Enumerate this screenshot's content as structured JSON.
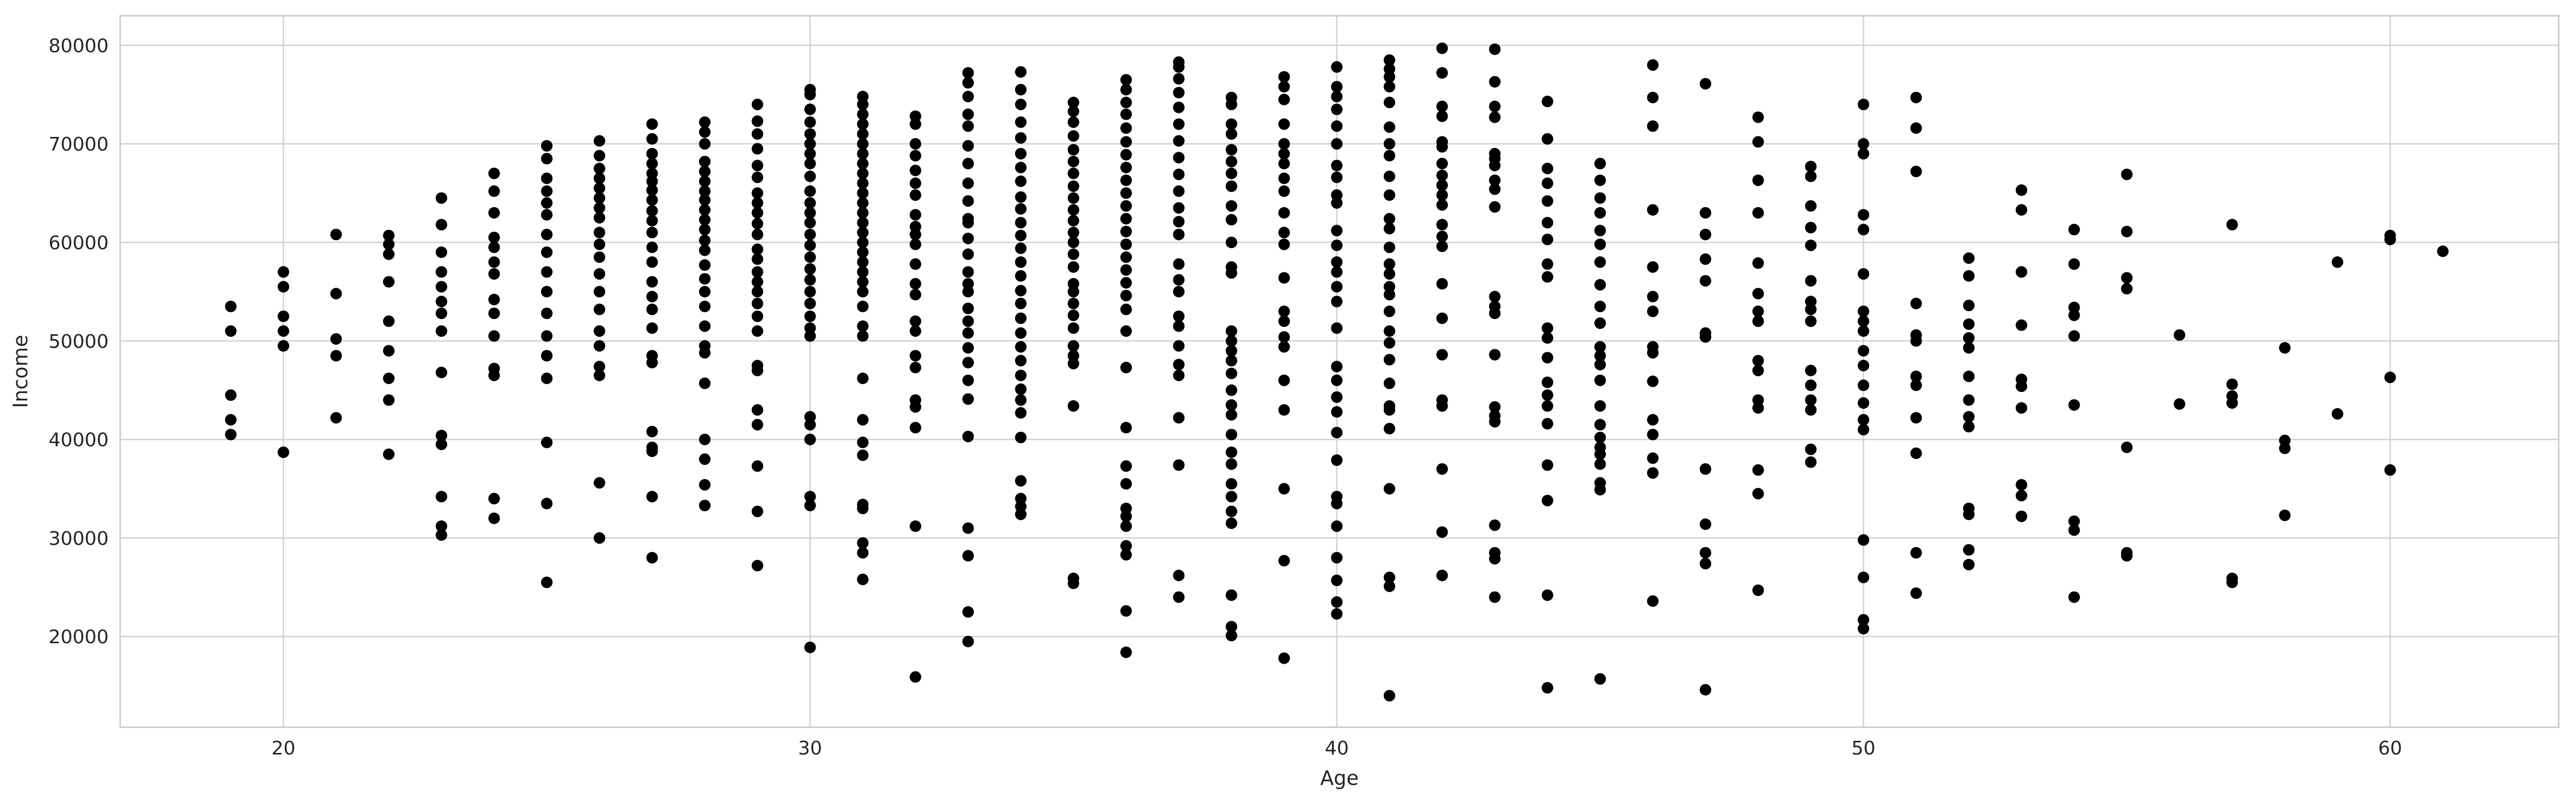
{
  "chart_data": {
    "type": "scatter",
    "title": "",
    "xlabel": "Age",
    "ylabel": "Income",
    "xlim": [
      16.9,
      63.2
    ],
    "ylim": [
      10800,
      83000
    ],
    "xticks": [
      20,
      30,
      40,
      50,
      60
    ],
    "yticks": [
      20000,
      30000,
      40000,
      50000,
      60000,
      70000,
      80000
    ],
    "xtick_labels": [
      "20",
      "30",
      "40",
      "50",
      "60"
    ],
    "ytick_labels": [
      "20000",
      "30000",
      "40000",
      "50000",
      "60000",
      "70000",
      "80000"
    ],
    "grid": true,
    "marker_color": "#000000",
    "grid_color": "#d0d0d0",
    "columns": [
      {
        "x": 19,
        "y": [
          53500,
          51000,
          44500,
          42000,
          40500
        ]
      },
      {
        "x": 20,
        "y": [
          57000,
          55500,
          52500,
          51000,
          49500,
          38700
        ]
      },
      {
        "x": 21,
        "y": [
          60800,
          54800,
          50200,
          48500,
          42200
        ]
      },
      {
        "x": 22,
        "y": [
          60700,
          59800,
          58800,
          56000,
          52000,
          49000,
          46200,
          44000,
          38500
        ]
      },
      {
        "x": 23,
        "y": [
          64500,
          61800,
          59000,
          57000,
          55500,
          54000,
          52800,
          51000,
          46800,
          40400,
          39500,
          34200,
          31200,
          30300
        ]
      },
      {
        "x": 24,
        "y": [
          67000,
          65200,
          63000,
          60500,
          59500,
          58000,
          56800,
          54200,
          52800,
          50500,
          47200,
          46500,
          34000,
          32000
        ]
      },
      {
        "x": 25,
        "y": [
          69800,
          68500,
          66500,
          65200,
          64000,
          62800,
          60800,
          59000,
          57000,
          55000,
          52800,
          50500,
          48500,
          46200,
          39700,
          33500,
          25500
        ]
      },
      {
        "x": 26,
        "y": [
          70300,
          68800,
          67500,
          66500,
          65500,
          64500,
          63500,
          62500,
          61000,
          59800,
          58500,
          56800,
          55000,
          53200,
          51000,
          49500,
          47400,
          46500,
          35600,
          30000
        ]
      },
      {
        "x": 27,
        "y": [
          72000,
          70500,
          69000,
          68000,
          67000,
          66200,
          65300,
          64300,
          63200,
          62200,
          61000,
          59500,
          58000,
          56000,
          54500,
          53200,
          51300,
          48500,
          47800,
          40800,
          39200,
          38800,
          34200,
          28000
        ]
      },
      {
        "x": 28,
        "y": [
          72200,
          71200,
          70000,
          68200,
          67200,
          66200,
          65200,
          64300,
          63300,
          62300,
          61300,
          60200,
          59200,
          57700,
          56300,
          55000,
          53500,
          51500,
          49500,
          48800,
          45700,
          40000,
          38000,
          35400,
          33300
        ]
      },
      {
        "x": 29,
        "y": [
          74000,
          72300,
          71000,
          69500,
          67800,
          66600,
          65000,
          64000,
          63000,
          61900,
          60800,
          59300,
          58300,
          57000,
          56000,
          55000,
          53800,
          52500,
          51000,
          47500,
          47000,
          43000,
          41500,
          37300,
          32700,
          27200
        ]
      },
      {
        "x": 30,
        "y": [
          75500,
          75000,
          73500,
          72200,
          71000,
          70000,
          69000,
          68000,
          66700,
          65200,
          64000,
          63000,
          62000,
          60800,
          59700,
          58500,
          57300,
          56200,
          55000,
          53800,
          52500,
          51300,
          50500,
          42300,
          41500,
          40000,
          34200,
          33300,
          18900
        ]
      },
      {
        "x": 31,
        "y": [
          74800,
          74000,
          73000,
          72000,
          71000,
          70000,
          69000,
          68000,
          67000,
          66000,
          65000,
          64000,
          63000,
          62000,
          61000,
          60000,
          59000,
          58000,
          57000,
          56000,
          55000,
          53500,
          51500,
          50500,
          46200,
          42000,
          39700,
          38400,
          33400,
          33000,
          29500,
          28500,
          25800
        ]
      },
      {
        "x": 32,
        "y": [
          72800,
          72000,
          70000,
          68800,
          67300,
          66000,
          64800,
          62800,
          61600,
          60800,
          59800,
          57800,
          55800,
          54700,
          52000,
          51000,
          48500,
          47300,
          44000,
          43300,
          41200,
          31200,
          15900
        ]
      },
      {
        "x": 33,
        "y": [
          77200,
          76200,
          74800,
          73000,
          71800,
          69800,
          68000,
          66000,
          64200,
          62400,
          62000,
          60400,
          58800,
          57000,
          55800,
          55000,
          53300,
          52000,
          50800,
          49300,
          47800,
          46000,
          44100,
          40300,
          31000,
          28200,
          22500,
          19500
        ]
      },
      {
        "x": 34,
        "y": [
          77300,
          75500,
          74000,
          72200,
          70600,
          69000,
          67600,
          66200,
          64600,
          63400,
          62000,
          60700,
          59400,
          58000,
          56600,
          55100,
          53800,
          52300,
          50800,
          49400,
          48000,
          46500,
          45100,
          44000,
          42700,
          40200,
          35800,
          34000,
          33200,
          32400
        ]
      },
      {
        "x": 35,
        "y": [
          74200,
          73300,
          72200,
          70800,
          69400,
          68200,
          67000,
          65700,
          64500,
          63300,
          62200,
          61000,
          60000,
          58800,
          57500,
          55800,
          55000,
          53800,
          52600,
          51300,
          49500,
          48500,
          47700,
          43400,
          25900,
          25400
        ]
      },
      {
        "x": 36,
        "y": [
          76500,
          75500,
          74200,
          73000,
          71600,
          70200,
          68900,
          67600,
          66300,
          65000,
          63700,
          62400,
          61100,
          59800,
          58500,
          57200,
          55900,
          54600,
          53200,
          51000,
          47300,
          41200,
          37300,
          35500,
          33000,
          32200,
          31200,
          29200,
          28300,
          22600,
          18400
        ]
      },
      {
        "x": 37,
        "y": [
          78300,
          77800,
          76600,
          75200,
          73700,
          72000,
          70300,
          68600,
          66900,
          65200,
          63500,
          62100,
          60800,
          57800,
          56200,
          55000,
          52500,
          51500,
          49500,
          47600,
          46500,
          42200,
          37400,
          26200,
          24000
        ]
      },
      {
        "x": 38,
        "y": [
          74700,
          74000,
          72000,
          71000,
          69400,
          68200,
          67000,
          65700,
          63700,
          62300,
          60000,
          57500,
          56900,
          51000,
          50000,
          49000,
          48000,
          46700,
          45000,
          43500,
          42500,
          40500,
          38700,
          37500,
          35500,
          34200,
          32700,
          31500,
          24200,
          21000,
          20100
        ]
      },
      {
        "x": 39,
        "y": [
          76800,
          75800,
          74500,
          72000,
          70000,
          69000,
          68000,
          66500,
          65200,
          63000,
          61000,
          59800,
          56400,
          53000,
          52000,
          50400,
          49400,
          46000,
          43000,
          35000,
          27700,
          17800
        ]
      },
      {
        "x": 40,
        "y": [
          77800,
          75800,
          74800,
          73500,
          71800,
          70000,
          67800,
          66600,
          64800,
          64000,
          61200,
          59700,
          58000,
          57000,
          55500,
          54000,
          51300,
          47400,
          46000,
          44300,
          42800,
          40700,
          37900,
          34200,
          33500,
          31200,
          28000,
          25700,
          23500,
          22300
        ]
      },
      {
        "x": 41,
        "y": [
          78500,
          77600,
          76800,
          75800,
          74200,
          71700,
          70000,
          68800,
          66700,
          64800,
          62400,
          61400,
          59500,
          57800,
          56800,
          55500,
          54700,
          53000,
          51000,
          49800,
          48100,
          45700,
          43400,
          43000,
          41100,
          35000,
          26000,
          25100,
          14000
        ]
      },
      {
        "x": 42,
        "y": [
          79700,
          77200,
          73800,
          72800,
          70200,
          69700,
          68000,
          66800,
          65800,
          64800,
          63800,
          61800,
          60600,
          59600,
          55800,
          52300,
          48600,
          44000,
          43400,
          37000,
          30600,
          26200
        ]
      },
      {
        "x": 43,
        "y": [
          79600,
          76300,
          73800,
          72700,
          69000,
          68500,
          67800,
          66300,
          65400,
          63600,
          54500,
          53500,
          52800,
          48600,
          43300,
          42400,
          41800,
          31300,
          28500,
          27900,
          24000
        ]
      },
      {
        "x": 44,
        "y": [
          74300,
          70500,
          67500,
          66000,
          64200,
          62000,
          60300,
          57800,
          56500,
          51300,
          50300,
          48300,
          45800,
          44500,
          43400,
          41600,
          37400,
          33800,
          24200,
          14800
        ]
      },
      {
        "x": 45,
        "y": [
          68000,
          66300,
          64500,
          63000,
          61200,
          59800,
          58000,
          55700,
          53500,
          51800,
          49400,
          48500,
          47600,
          46000,
          43400,
          41500,
          40200,
          39200,
          38500,
          37500,
          35600,
          34900,
          15700
        ]
      },
      {
        "x": 46,
        "y": [
          78000,
          74700,
          71800,
          63300,
          57500,
          54500,
          53000,
          49400,
          48800,
          45900,
          42000,
          40500,
          38100,
          36600,
          23600
        ]
      },
      {
        "x": 47,
        "y": [
          76100,
          63000,
          60800,
          58300,
          56100,
          50800,
          50400,
          37000,
          31400,
          28500,
          27400,
          14600
        ]
      },
      {
        "x": 48,
        "y": [
          72700,
          70200,
          66300,
          63000,
          57900,
          54800,
          53000,
          52000,
          48000,
          47000,
          44000,
          43200,
          36900,
          34500,
          24700
        ]
      },
      {
        "x": 49,
        "y": [
          67700,
          66700,
          63700,
          61500,
          59700,
          56100,
          54000,
          53200,
          52000,
          47000,
          45500,
          44000,
          43000,
          39000,
          37700
        ]
      },
      {
        "x": 50,
        "y": [
          74000,
          70000,
          69000,
          62800,
          61300,
          56800,
          53000,
          52000,
          51000,
          49000,
          47500,
          45500,
          43700,
          42000,
          41000,
          29800,
          26000,
          21700,
          20800
        ]
      },
      {
        "x": 51,
        "y": [
          74700,
          71600,
          67200,
          53800,
          50600,
          50000,
          46400,
          45500,
          42200,
          38600,
          28500,
          24400
        ]
      },
      {
        "x": 52,
        "y": [
          58400,
          56600,
          53600,
          51700,
          50300,
          49300,
          46400,
          44000,
          42300,
          41300,
          33000,
          32400,
          28800,
          27300
        ]
      },
      {
        "x": 53,
        "y": [
          65300,
          63300,
          57000,
          51600,
          46100,
          45400,
          43200,
          35400,
          34300,
          32200
        ]
      },
      {
        "x": 54,
        "y": [
          61300,
          57800,
          53400,
          52600,
          50500,
          43500,
          31700,
          30800,
          24000
        ]
      },
      {
        "x": 55,
        "y": [
          66900,
          61100,
          56400,
          55300,
          39200,
          28500,
          28200
        ]
      },
      {
        "x": 56,
        "y": [
          50600,
          43600
        ]
      },
      {
        "x": 57,
        "y": [
          61800,
          45600,
          44400,
          43700,
          25900,
          25500
        ]
      },
      {
        "x": 58,
        "y": [
          49300,
          39900,
          39100,
          32300
        ]
      },
      {
        "x": 59,
        "y": [
          58000,
          42600
        ]
      },
      {
        "x": 60,
        "y": [
          60700,
          60300,
          46300,
          36900
        ]
      },
      {
        "x": 61,
        "y": [
          59100
        ]
      }
    ]
  }
}
